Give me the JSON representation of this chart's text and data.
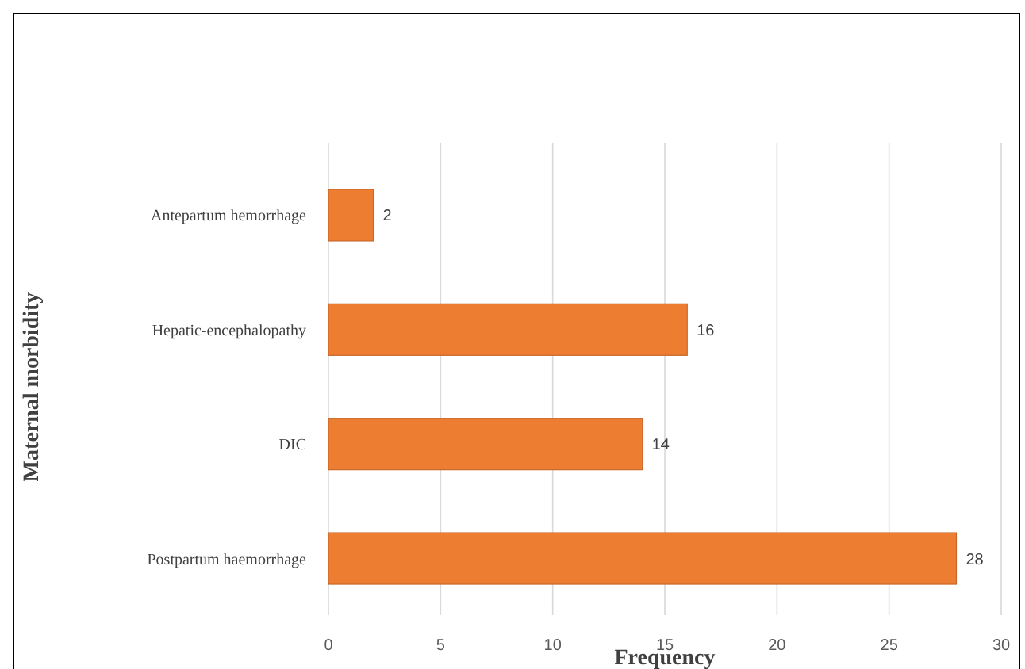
{
  "chart_data": {
    "type": "bar",
    "orientation": "horizontal",
    "xlabel": "Frequency",
    "ylabel": "Maternal morbidity",
    "categories": [
      "Antepartum hemorrhage",
      "Hepatic-encephalopathy",
      "DIC",
      "Postpartum haemorrhage"
    ],
    "values": [
      2,
      16,
      14,
      28
    ],
    "color": "#ed7d31",
    "xlim": [
      0,
      30
    ],
    "xticks": [
      0,
      5,
      10,
      15,
      20,
      25,
      30
    ],
    "grid": "x",
    "data_labels": true
  }
}
